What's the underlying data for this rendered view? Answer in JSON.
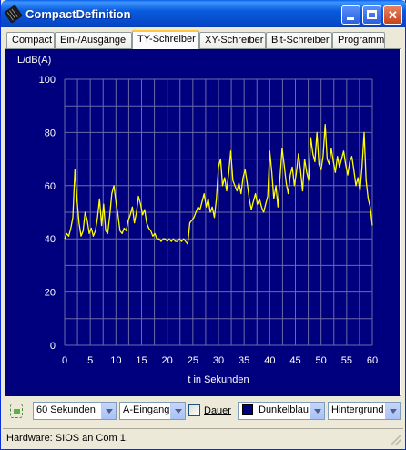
{
  "window": {
    "title": "CompactDefinition"
  },
  "tabs": [
    {
      "label": "Compact",
      "active": false
    },
    {
      "label": "Ein-/Ausgänge",
      "active": false
    },
    {
      "label": "TY-Schreiber",
      "active": true
    },
    {
      "label": "XY-Schreiber",
      "active": false
    },
    {
      "label": "Bit-Schreiber",
      "active": false
    },
    {
      "label": "Programm",
      "active": false
    }
  ],
  "chart_data": {
    "type": "line",
    "xlabel": "t in Sekunden",
    "ylabel": "L/dB(A)",
    "xlim": [
      0,
      60
    ],
    "ylim": [
      0,
      100
    ],
    "xticks": [
      0,
      5,
      10,
      15,
      20,
      25,
      30,
      35,
      40,
      45,
      50,
      55,
      60
    ],
    "yticks": [
      0,
      20,
      40,
      60,
      80,
      100
    ],
    "grid": true,
    "colors": {
      "background": "#00007f",
      "grid": "#6a6aa8",
      "line": "#ffff00",
      "text": "#ffffff"
    },
    "series": [
      {
        "x": [
          0,
          0.4,
          0.8,
          1.2,
          1.6,
          2.0,
          2.4,
          2.8,
          3.2,
          3.6,
          4.0,
          4.4,
          4.8,
          5.2,
          5.6,
          6.0,
          6.4,
          6.8,
          7.2,
          7.6,
          8.0,
          8.4,
          8.8,
          9.2,
          9.6,
          10.0,
          10.4,
          10.8,
          11.2,
          11.6,
          12.0,
          12.4,
          12.8,
          13.2,
          13.6,
          14.0,
          14.4,
          14.8,
          15.2,
          15.6,
          16.0,
          16.4,
          16.8,
          17.2,
          17.6,
          18.0,
          18.4,
          18.8,
          19.2,
          19.6,
          20.0,
          20.4,
          20.8,
          21.2,
          21.6,
          22.0,
          22.4,
          22.8,
          23.2,
          23.6,
          24.0,
          24.4,
          24.8,
          25.2,
          25.6,
          26.0,
          26.4,
          26.8,
          27.2,
          27.6,
          28.0,
          28.4,
          28.8,
          29.2,
          29.6,
          30.0,
          30.4,
          30.8,
          31.2,
          31.6,
          32.0,
          32.4,
          32.8,
          33.2,
          33.6,
          34.0,
          34.4,
          34.8,
          35.2,
          35.6,
          36.0,
          36.4,
          36.8,
          37.2,
          37.6,
          38.0,
          38.4,
          38.8,
          39.2,
          39.6,
          40.0,
          40.4,
          40.8,
          41.2,
          41.6,
          42.0,
          42.4,
          42.8,
          43.2,
          43.6,
          44.0,
          44.4,
          44.8,
          45.2,
          45.6,
          46.0,
          46.4,
          46.8,
          47.2,
          47.6,
          48.0,
          48.4,
          48.8,
          49.2,
          49.6,
          50.0,
          50.4,
          50.8,
          51.2,
          51.6,
          52.0,
          52.4,
          52.8,
          53.2,
          53.6,
          54.0,
          54.4,
          54.8,
          55.2,
          55.6,
          56.0,
          56.4,
          56.8,
          57.2,
          57.6,
          58.0,
          58.4,
          58.8,
          59.2,
          59.6,
          60.0
        ],
        "values": [
          40,
          42,
          41,
          44,
          48,
          66,
          55,
          46,
          41,
          43,
          50,
          47,
          42,
          44,
          41,
          43,
          48,
          55,
          45,
          53,
          43,
          42,
          49,
          57,
          60,
          54,
          49,
          43,
          42,
          44,
          43,
          47,
          49,
          52,
          46,
          50,
          56,
          53,
          49,
          51,
          46,
          44,
          43,
          41,
          42,
          40,
          40,
          39,
          40,
          40,
          39,
          40,
          39,
          40,
          39,
          39,
          40,
          39,
          40,
          39,
          38,
          46,
          47,
          48,
          50,
          52,
          51,
          54,
          57,
          52,
          55,
          50,
          52,
          48,
          55,
          67,
          70,
          60,
          63,
          58,
          65,
          73,
          62,
          60,
          58,
          61,
          57,
          63,
          66,
          61,
          55,
          51,
          54,
          57,
          53,
          55,
          52,
          50,
          53,
          56,
          73,
          65,
          55,
          60,
          52,
          63,
          74,
          68,
          61,
          57,
          64,
          67,
          60,
          65,
          72,
          66,
          58,
          70,
          65,
          62,
          78,
          72,
          69,
          80,
          68,
          66,
          71,
          83,
          70,
          68,
          74,
          69,
          65,
          71,
          67,
          70,
          73,
          68,
          64,
          69,
          71,
          66,
          60,
          63,
          58,
          67,
          80,
          62,
          55,
          52,
          45
        ]
      }
    ]
  },
  "toolbar": {
    "duration": "60 Sekunden",
    "input": "A-Eingang",
    "dauer_label": "Dauer",
    "dauer_checked": false,
    "color": "Dunkelblau",
    "target": "Hintergrund"
  },
  "status": {
    "text": "Hardware: SIOS an Com 1."
  }
}
